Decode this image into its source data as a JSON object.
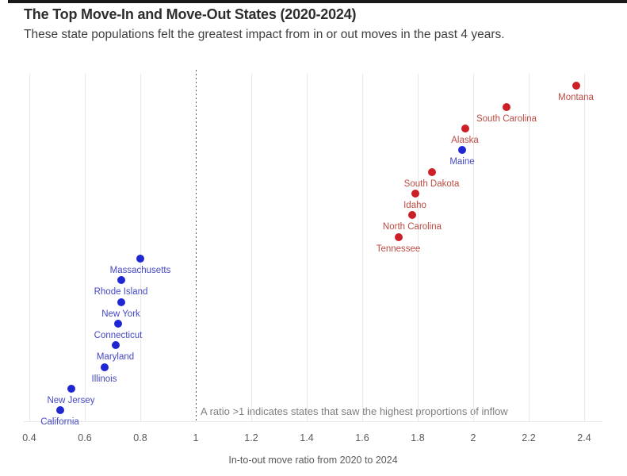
{
  "page": {
    "title": "The Top Move-In and Move-Out States (2020-2024)",
    "subtitle": "These state populations felt the greatest impact from in or out moves in the past 4 years."
  },
  "colors": {
    "inflow_dot": "#cb2027",
    "inflow_label": "#bb4a43",
    "outflow_dot": "#1f27d3",
    "outflow_label": "#4448c4",
    "gridline": "#e8e8e8",
    "reference_line": "#555555",
    "tick_text": "#595959",
    "annotation_text": "#7f7f7f"
  },
  "chart_data": {
    "type": "scatter",
    "title": "The Top Move-In and Move-Out States (2020-2024)",
    "subtitle": "These state populations felt the greatest impact from in or out moves in the past 4 years.",
    "xlabel": "In-to-out move ratio from 2020 to 2024",
    "ylabel": "",
    "xlim": [
      0.38,
      2.47
    ],
    "grid": true,
    "legend": false,
    "reference_line": {
      "x": 1,
      "style": "dashed"
    },
    "annotation": "A ratio >1 indicates states that saw the highest proportions of inflow",
    "xticks": [
      {
        "label": "0.4",
        "value": 0.4
      },
      {
        "label": "0.6",
        "value": 0.6
      },
      {
        "label": "0.8",
        "value": 0.8
      },
      {
        "label": "1",
        "value": 1.0
      },
      {
        "label": "1.2",
        "value": 1.2
      },
      {
        "label": "1.4",
        "value": 1.4
      },
      {
        "label": "1.6",
        "value": 1.6
      },
      {
        "label": "1.8",
        "value": 1.8
      },
      {
        "label": "2",
        "value": 2.0
      },
      {
        "label": "2.2",
        "value": 2.2
      },
      {
        "label": "2.4",
        "value": 2.4
      }
    ],
    "points": [
      {
        "state": "Montana",
        "ratio": 2.37,
        "group": "inflow"
      },
      {
        "state": "South Carolina",
        "ratio": 2.12,
        "group": "inflow"
      },
      {
        "state": "Alaska",
        "ratio": 1.97,
        "group": "inflow"
      },
      {
        "state": "Maine",
        "ratio": 1.96,
        "group": "outflow"
      },
      {
        "state": "South Dakota",
        "ratio": 1.85,
        "group": "inflow"
      },
      {
        "state": "Idaho",
        "ratio": 1.79,
        "group": "inflow"
      },
      {
        "state": "North Carolina",
        "ratio": 1.78,
        "group": "inflow"
      },
      {
        "state": "Tennessee",
        "ratio": 1.73,
        "group": "inflow"
      },
      {
        "state": "Massachusetts",
        "ratio": 0.8,
        "group": "outflow"
      },
      {
        "state": "Rhode Island",
        "ratio": 0.73,
        "group": "outflow"
      },
      {
        "state": "New York",
        "ratio": 0.73,
        "group": "outflow"
      },
      {
        "state": "Connecticut",
        "ratio": 0.72,
        "group": "outflow"
      },
      {
        "state": "Maryland",
        "ratio": 0.71,
        "group": "outflow"
      },
      {
        "state": "Illinois",
        "ratio": 0.67,
        "group": "outflow"
      },
      {
        "state": "New Jersey",
        "ratio": 0.55,
        "group": "outflow"
      },
      {
        "state": "California",
        "ratio": 0.51,
        "group": "outflow"
      }
    ]
  }
}
